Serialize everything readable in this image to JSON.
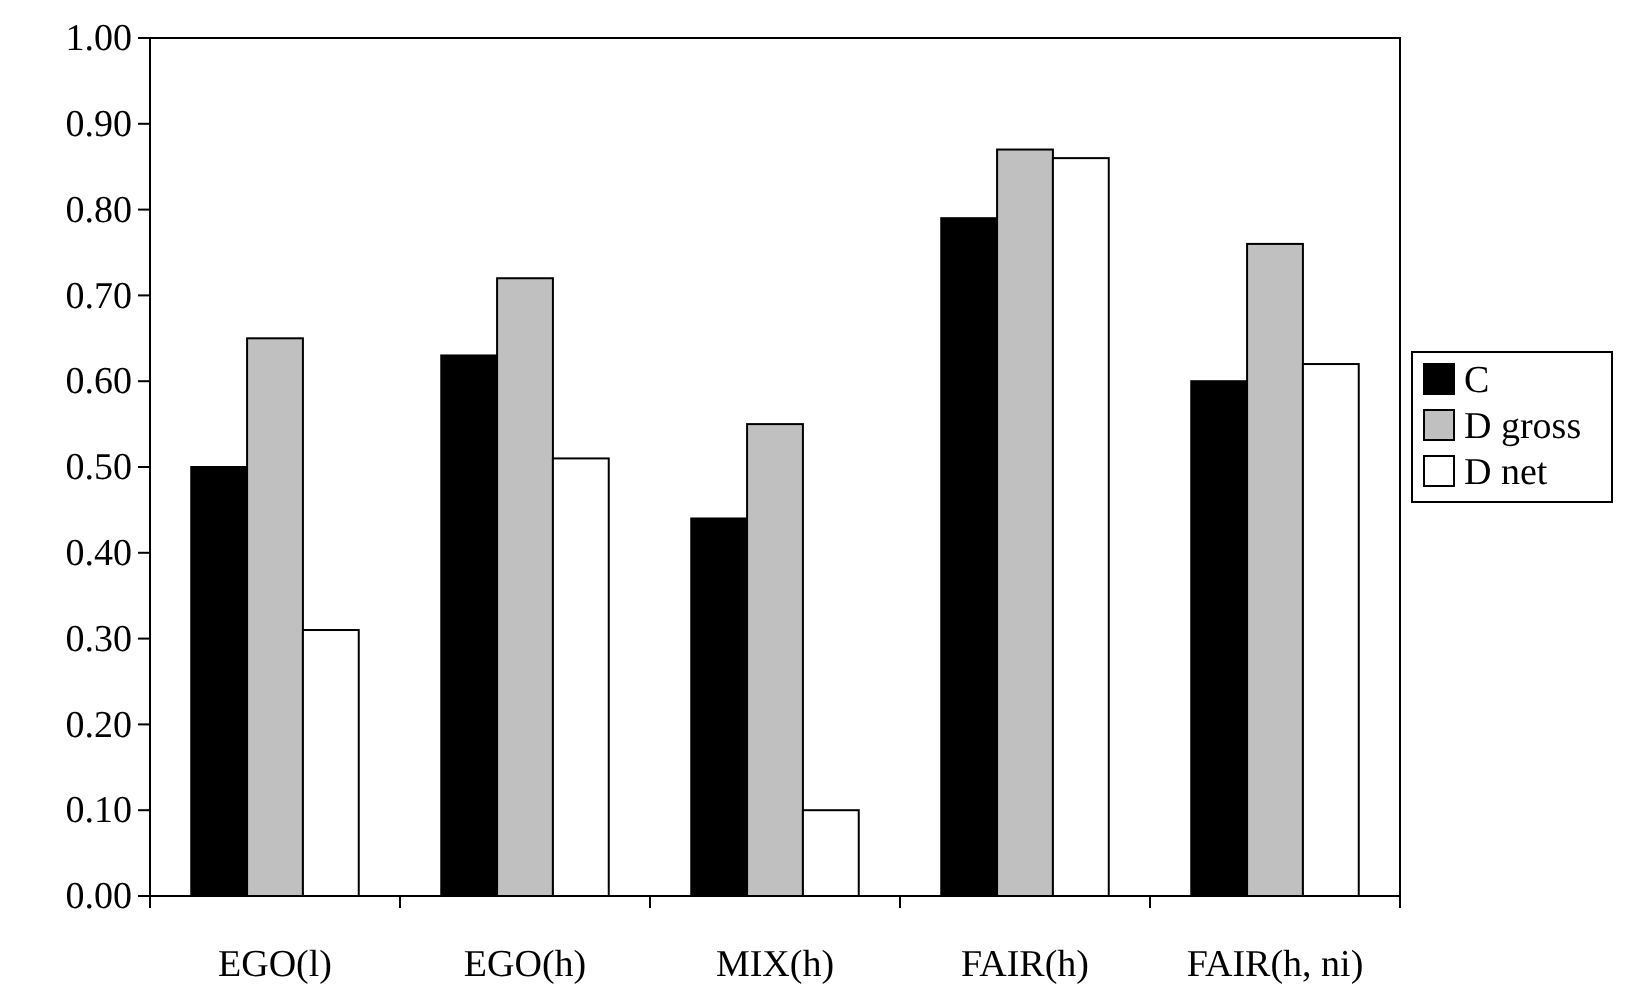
{
  "chart_data": {
    "type": "bar",
    "categories": [
      "EGO(l)",
      "EGO(h)",
      "MIX(h)",
      "FAIR(h)",
      "FAIR(h, ni)"
    ],
    "series": [
      {
        "name": "C",
        "color": "#000000",
        "values": [
          0.5,
          0.63,
          0.44,
          0.79,
          0.6
        ]
      },
      {
        "name": "D gross",
        "color": "#c0c0c0",
        "values": [
          0.65,
          0.72,
          0.55,
          0.87,
          0.76
        ]
      },
      {
        "name": "D net",
        "color": "#ffffff",
        "values": [
          0.31,
          0.51,
          0.1,
          0.86,
          0.62
        ]
      }
    ],
    "ylim": [
      0,
      1
    ],
    "yticks": [
      {
        "value": 0,
        "label": "0.00"
      },
      {
        "value": 0.1,
        "label": "0.10"
      },
      {
        "value": 0.2,
        "label": "0.20"
      },
      {
        "value": 0.3,
        "label": "0.30"
      },
      {
        "value": 0.4,
        "label": "0.40"
      },
      {
        "value": 0.5,
        "label": "0.50"
      },
      {
        "value": 0.6,
        "label": "0.60"
      },
      {
        "value": 0.7,
        "label": "0.70"
      },
      {
        "value": 0.8,
        "label": "0.80"
      },
      {
        "value": 0.9,
        "label": "0.90"
      },
      {
        "value": 1,
        "label": "1.00"
      }
    ],
    "legend": "right"
  }
}
